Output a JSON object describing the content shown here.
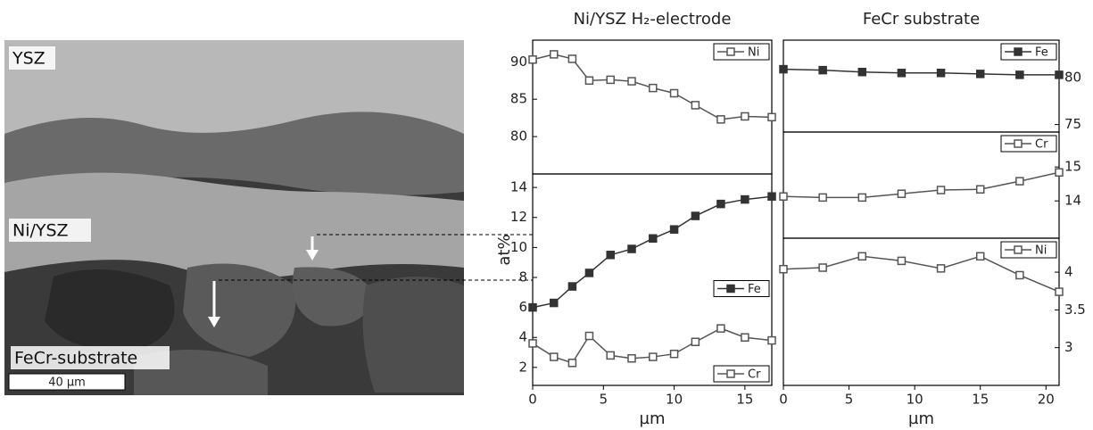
{
  "image": {
    "labels": [
      "YSZ",
      "Ni/YSZ",
      "FeCr-substrate"
    ],
    "scale_bar": "40 µm"
  },
  "chart_data": [
    {
      "type": "line",
      "title": "Ni/YSZ H₂-electrode",
      "xlabel": "µm",
      "ylabel": "at%",
      "x": [
        0,
        1.5,
        2.8,
        4,
        5.5,
        7,
        8.5,
        10,
        11.5,
        13.3,
        15,
        16.9
      ],
      "xlim": [
        0,
        16.9
      ],
      "xticks": [
        0,
        5,
        10,
        15
      ],
      "tick_side": "left",
      "panels": [
        {
          "ylim": [
            75,
            92.9
          ],
          "yticks": [
            80,
            85,
            90
          ],
          "series": [
            {
              "name": "Ni",
              "color": "#555",
              "marker_filled": false,
              "legend": "upper right",
              "values": [
                90.3,
                91,
                90.4,
                87.5,
                87.6,
                87.4,
                86.5,
                85.8,
                84.2,
                82.3,
                82.7,
                82.6
              ]
            }
          ]
        },
        {
          "ylim": [
            0.8,
            14.9
          ],
          "yticks": [
            2,
            4,
            6,
            8,
            10,
            12,
            14
          ],
          "series": [
            {
              "name": "Fe",
              "color": "#333",
              "marker_filled": true,
              "legend": "center right",
              "values": [
                6,
                6.3,
                7.4,
                8.3,
                9.5,
                9.9,
                10.6,
                11.2,
                12.1,
                12.9,
                13.2,
                13.4
              ]
            },
            {
              "name": "Cr",
              "color": "#555",
              "marker_filled": false,
              "legend": "lower right",
              "values": [
                3.6,
                2.7,
                2.3,
                4.1,
                2.8,
                2.6,
                2.7,
                2.9,
                3.7,
                4.6,
                4.0,
                3.8
              ]
            }
          ]
        }
      ]
    },
    {
      "type": "line",
      "title": "FeCr substrate",
      "xlabel": "µm",
      "x": [
        0,
        3,
        6,
        9,
        12,
        15,
        18,
        21
      ],
      "xlim": [
        0,
        21
      ],
      "xticks": [
        0,
        5,
        10,
        15,
        20
      ],
      "tick_side": "right",
      "panels": [
        {
          "ylim": [
            74.2,
            84
          ],
          "yticks": [
            75,
            80
          ],
          "series": [
            {
              "name": "Fe",
              "color": "#333",
              "marker_filled": true,
              "legend": "upper right",
              "values": [
                80.9,
                80.8,
                80.6,
                80.5,
                80.5,
                80.4,
                80.3,
                80.3
              ]
            }
          ]
        },
        {
          "ylim": [
            12.9,
            16.03
          ],
          "yticks": [
            14,
            15
          ],
          "series": [
            {
              "name": "Cr",
              "color": "#555",
              "marker_filled": false,
              "legend": "upper right",
              "values": [
                14.13,
                14.1,
                14.1,
                14.21,
                14.32,
                14.34,
                14.58,
                14.84
              ]
            }
          ]
        },
        {
          "ylim": [
            2.5,
            4.45
          ],
          "yticks": [
            3,
            3.5,
            4
          ],
          "series": [
            {
              "name": "Ni",
              "color": "#555",
              "marker_filled": false,
              "legend": "upper right",
              "values": [
                4.04,
                4.06,
                4.21,
                4.15,
                4.05,
                4.21,
                3.96,
                3.74
              ]
            }
          ]
        }
      ]
    }
  ]
}
